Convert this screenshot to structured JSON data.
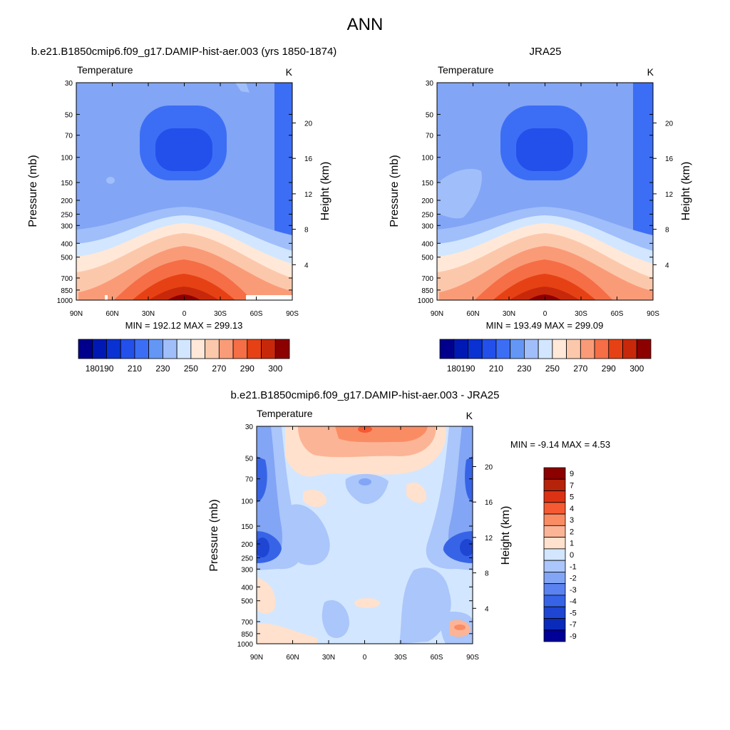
{
  "page_title": "ANN",
  "chart_data": [
    {
      "id": "model",
      "type": "contour",
      "title": "b.e21.B1850cmip6.f09_g17.DAMIP-hist-aer.003 (yrs 1850-1874)",
      "left_string": "Temperature",
      "right_string": "K",
      "xlabel": "",
      "ylabel": "Pressure (mb)",
      "ylabel_right": "Height (km)",
      "x_ticks": [
        "90N",
        "60N",
        "30N",
        "0",
        "30S",
        "60S",
        "90S"
      ],
      "y_ticks": [
        "30",
        "50",
        "70",
        "100",
        "150",
        "200",
        "250",
        "300",
        "400",
        "500",
        "700",
        "850",
        "1000"
      ],
      "height_ticks": [
        "20",
        "16",
        "12",
        "8",
        "4"
      ],
      "stats": "MIN = 192.12  MAX = 299.13",
      "colorbar_labels": [
        "180",
        "190",
        "210",
        "230",
        "250",
        "270",
        "290",
        "300"
      ],
      "levels": [
        180,
        185,
        190,
        200,
        210,
        220,
        230,
        240,
        250,
        260,
        270,
        280,
        290,
        295,
        300
      ]
    },
    {
      "id": "obs",
      "type": "contour",
      "title": "JRA25",
      "left_string": "Temperature",
      "right_string": "K",
      "xlabel": "",
      "ylabel": "Pressure (mb)",
      "ylabel_right": "Height (km)",
      "x_ticks": [
        "90N",
        "60N",
        "30N",
        "0",
        "30S",
        "60S",
        "90S"
      ],
      "y_ticks": [
        "30",
        "50",
        "70",
        "100",
        "150",
        "200",
        "250",
        "300",
        "400",
        "500",
        "700",
        "850",
        "1000"
      ],
      "height_ticks": [
        "20",
        "16",
        "12",
        "8",
        "4"
      ],
      "stats": "MIN = 193.49  MAX = 299.09",
      "colorbar_labels": [
        "180",
        "190",
        "210",
        "230",
        "250",
        "270",
        "290",
        "300"
      ],
      "levels": [
        180,
        185,
        190,
        200,
        210,
        220,
        230,
        240,
        250,
        260,
        270,
        280,
        290,
        295,
        300
      ]
    },
    {
      "id": "diff",
      "type": "contour",
      "title": "b.e21.B1850cmip6.f09_g17.DAMIP-hist-aer.003 - JRA25",
      "left_string": "Temperature",
      "right_string": "K",
      "xlabel": "",
      "ylabel": "Pressure (mb)",
      "ylabel_right": "Height (km)",
      "x_ticks": [
        "90N",
        "60N",
        "30N",
        "0",
        "30S",
        "60S",
        "90S"
      ],
      "y_ticks": [
        "30",
        "50",
        "70",
        "100",
        "150",
        "200",
        "250",
        "300",
        "400",
        "500",
        "700",
        "850",
        "1000"
      ],
      "height_ticks": [
        "20",
        "16",
        "12",
        "8",
        "4"
      ],
      "stats": "MIN =  -9.14  MAX =   4.53",
      "colorbar_labels": [
        "9",
        "7",
        "5",
        "4",
        "3",
        "2",
        "1",
        "0",
        "-1",
        "-2",
        "-3",
        "-4",
        "-5",
        "-7",
        "-9"
      ],
      "levels": [
        -9,
        -7,
        -5,
        -4,
        -3,
        -2,
        -1,
        0,
        1,
        2,
        3,
        4,
        5,
        7,
        9
      ]
    }
  ],
  "colors": {
    "abs_palette": [
      "#00008c",
      "#0019b4",
      "#0a32d2",
      "#2350eb",
      "#3c6ef5",
      "#6496f5",
      "#a0befa",
      "#d2e6ff",
      "#ffe8d7",
      "#fcc8ac",
      "#fa9b78",
      "#f56e46",
      "#e64114",
      "#c8280a",
      "#8c0000"
    ],
    "diff_palette": [
      "#8c0000",
      "#b4230a",
      "#dc3214",
      "#f55a32",
      "#fa8c64",
      "#fcb496",
      "#ffe1cd",
      "#d2e6ff",
      "#aac6fa",
      "#82a5f5",
      "#5a82f0",
      "#3764e6",
      "#1e46d2",
      "#0a2ab9",
      "#000096"
    ]
  }
}
